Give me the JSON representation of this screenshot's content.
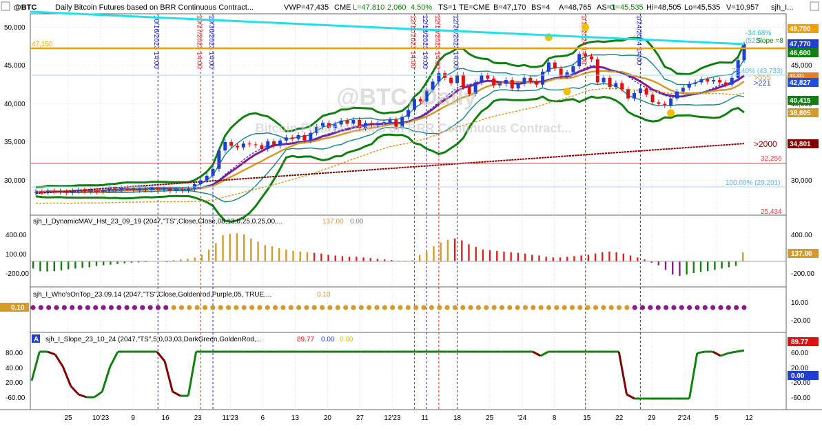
{
  "header": {
    "symbol": "@BTC",
    "desc": "Daily  Bitcoin Futures based on BRR Continuous Contract...",
    "vwp": "VWP=47,435",
    "exch": "CME",
    "last": "L=47,810",
    "chg": "2,060",
    "pct": "4.50%",
    "ts": "TS=1",
    "te": "TE=CME",
    "bid": "B=47,170",
    "bs": "BS=4",
    "ask": "A=48,765",
    "as": "AS=1",
    "open": "O=45,535",
    "hi": "Hi=48,505",
    "lo": "Lo=45,535",
    "vol": "V=10,957",
    "study": "sjh_I..."
  },
  "colors": {
    "bg": "#ffffff",
    "grid": "#d9d9d9",
    "up": "#1f3fcf",
    "down": "#e01010",
    "dkgreen": "#108010",
    "teal": "#1f8a8a",
    "blue": "#1f4fe0",
    "purple": "#8a1a8a",
    "goldenrod": "#d49a2a",
    "maroon": "#800000",
    "cyan": "#22e0e8",
    "orange": "#f0a000",
    "red": "#e02020",
    "lightblue": "#8fd0f0"
  },
  "watermark": {
    "big": "@BTC, Daily",
    "small": "Bitcoin Futures based on BRR Continuous Contract..."
  },
  "x_axis": {
    "labels": [
      "25",
      "10'23",
      "9",
      "16",
      "23",
      "11'23",
      "6",
      "13",
      "20",
      "27",
      "12'23",
      "11",
      "18",
      "25",
      "'24",
      "8",
      "15",
      "22",
      "29",
      "2'24",
      "5",
      "12"
    ]
  },
  "markers": [
    {
      "label": "10/16/2023",
      "time": "14:00",
      "color": "#1f1fc0"
    },
    {
      "label": "10/27/2023",
      "time": "14:00",
      "color": "#d02020"
    },
    {
      "label": "10/30/2023",
      "time": "14:00",
      "color": "#1f1fc0"
    },
    {
      "label": "12/11/2023",
      "time": "14:00",
      "color": "#d02020"
    },
    {
      "label": "12/13/2023",
      "time": "14:00",
      "color": "#1f1fc0"
    },
    {
      "label": "12/15/2023",
      "time": "14:00",
      "color": "#d02020"
    },
    {
      "label": "12/20/2023",
      "time": "14:00",
      "color": "#1f1fc0"
    },
    {
      "label": "1/11/2024",
      "time": "14:00",
      "color": "#d02020"
    },
    {
      "label": "1/24/2024",
      "time": "14:00",
      "color": "#1f1fc0"
    }
  ],
  "price_panel": {
    "y_ticks": [
      "50,000",
      "45,000",
      "40,000",
      "35,000",
      "30,000"
    ],
    "right_ticks": [
      "45,000",
      "40,000",
      "30,000"
    ],
    "hline_47150": "47,150",
    "hline_32256": "32,256",
    "label_25434": "25,434",
    "fib_100": "100.00% (29,201)",
    "fib_76": "76.40% (43,733)",
    "fib_top_pct": "-34.68%",
    "fib_top_val": "(52,5...",
    "slope_label": "Slope =8",
    "right_labels": [
      ">555",
      ">221",
      ">2000"
    ],
    "badges": [
      {
        "text": "49,700",
        "bg": "#f0a000",
        "fg": "#ffffff"
      },
      {
        "text": "47,770",
        "bg": "#1f3fcf",
        "fg": "#ffffff"
      },
      {
        "text": "46,600",
        "bg": "#108010",
        "fg": "#ffffff"
      },
      {
        "text": "43,331",
        "bg": "#e08020",
        "fg": "#ffffff"
      },
      {
        "text": "42,827",
        "bg": "#1f4fe0",
        "fg": "#ffffff"
      },
      {
        "text": "40,415",
        "bg": "#108010",
        "fg": "#ffffff"
      },
      {
        "text": "38,805",
        "bg": "#d49a2a",
        "fg": "#ffffff"
      },
      {
        "text": "34,801",
        "bg": "#800000",
        "fg": "#ffffff"
      }
    ]
  },
  "dmav_panel": {
    "title": "sjh_I_DynamicMAV_Hst_23_09_19 (2047,\"TS\",Close,Close,08,13,0.25,0.25,00,...",
    "val1": "137.00",
    "val2": "0.00",
    "ticks": [
      "400.00",
      "100.00",
      "-200.00"
    ],
    "badge": "137.00"
  },
  "whoson_panel": {
    "title": "sjh_I_Who'sOnTop_23.09.14 (2047,\"TS\",Close,Goldenrod,Purple,05,  TRUE,...",
    "val": "0.10",
    "ticks": [
      "10.00",
      "-20.00"
    ],
    "left_badge": "0.10"
  },
  "slope_panel": {
    "tag": "A",
    "title": "sjh_I_Slope_23_10_24 (2047,\"TS\",5,0,03,03,DarkGreen,GoldenRod,...",
    "v1": "89.77",
    "v2": "0.00",
    "v3": "0.00",
    "ticks": [
      "80.00",
      "40.00",
      "20.00",
      "0.00",
      "-20.00",
      "-40.00",
      "-60.00"
    ],
    "right_ticks": [
      "60.00",
      "20.00",
      "-20.00",
      "-60.00"
    ],
    "badge1": "89.77",
    "badge2": "0.00"
  },
  "chart_data": {
    "type": "candlestick",
    "symbol": "@BTC",
    "ylim": [
      26000,
      51500
    ],
    "closes": [
      28500,
      28450,
      28600,
      28550,
      28500,
      28400,
      28600,
      28700,
      28550,
      28650,
      28500,
      28700,
      28900,
      28800,
      29000,
      28950,
      28700,
      28900,
      28750,
      29100,
      28800,
      28900,
      28650,
      28800,
      28700,
      28900,
      29500,
      30000,
      30600,
      31500,
      33900,
      35000,
      34500,
      34300,
      34800,
      34700,
      34600,
      34100,
      35100,
      34500,
      35200,
      35600,
      35400,
      35900,
      35200,
      36200,
      37000,
      37500,
      36800,
      37300,
      37800,
      37400,
      37900,
      36800,
      37500,
      37200,
      37400,
      37600,
      37900,
      37000,
      38300,
      39200,
      40600,
      40300,
      41800,
      42900,
      44000,
      43400,
      42700,
      43800,
      42200,
      41300,
      42800,
      43700,
      43300,
      42400,
      42600,
      43100,
      42000,
      42600,
      43400,
      42900,
      42500,
      44200,
      45400,
      44600,
      43600,
      44100,
      44900,
      46500,
      46200,
      45800,
      42800,
      43400,
      42200,
      42700,
      41900,
      40700,
      41400,
      42000,
      41200,
      40200,
      40000,
      39800,
      40700,
      41600,
      42100,
      42600,
      42800,
      43200,
      42900,
      43100,
      42800,
      42500,
      43400,
      45700,
      47770
    ],
    "series": [
      {
        "name": "DynamicMAV histogram",
        "values": [
          -110,
          -150,
          -155,
          -150,
          -140,
          -120,
          -110,
          -100,
          -90,
          -70,
          -60,
          -50,
          -40,
          -30,
          -20,
          -15,
          -10,
          -5,
          -5,
          -10,
          20,
          30,
          40,
          60,
          100,
          180,
          280,
          400,
          420,
          430,
          410,
          350,
          300,
          250,
          230,
          200,
          180,
          160,
          150,
          140,
          130,
          120,
          100,
          90,
          80,
          70,
          70,
          60,
          50,
          40,
          30,
          20,
          10,
          10,
          20,
          100,
          150,
          230,
          290,
          330,
          350,
          320,
          260,
          220,
          180,
          170,
          160,
          150,
          140,
          130,
          120,
          100,
          90,
          70,
          60,
          60,
          70,
          80,
          90,
          100,
          120,
          140,
          150,
          140,
          120,
          90,
          60,
          30,
          -20,
          -60,
          -130,
          -200,
          -220,
          -200,
          -180,
          -160,
          -150,
          -130,
          -110,
          -90,
          -70,
          137
        ]
      },
      {
        "name": "Slope",
        "values": [
          -20,
          85,
          85,
          75,
          30,
          -40,
          -70,
          -80,
          -80,
          -60,
          30,
          85,
          85,
          85,
          85,
          85,
          85,
          50,
          -60,
          -75,
          -75,
          85,
          85,
          85,
          85,
          85,
          85,
          85,
          85,
          85,
          85,
          85,
          85,
          85,
          85,
          85,
          85,
          85,
          85,
          85,
          85,
          85,
          85,
          85,
          85,
          85,
          85,
          85,
          85,
          85,
          85,
          85,
          85,
          85,
          85,
          85,
          85,
          85,
          85,
          85,
          85,
          85,
          85,
          85,
          85,
          70,
          85,
          85,
          85,
          85,
          85,
          85,
          85,
          85,
          85,
          85,
          -70,
          -85,
          -85,
          -85,
          -85,
          -85,
          -85,
          -85,
          -85,
          80,
          85,
          85,
          70,
          80,
          85,
          89.77
        ]
      }
    ]
  }
}
